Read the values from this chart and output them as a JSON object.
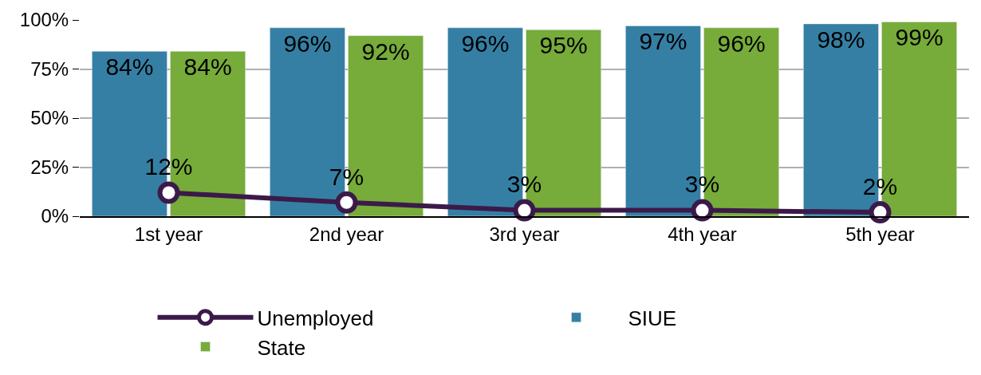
{
  "chart_data": {
    "type": "bar",
    "categories": [
      "1st year",
      "2nd year",
      "3rd year",
      "4th year",
      "5th year"
    ],
    "series": [
      {
        "name": "Unemployed",
        "type": "line",
        "color": "#3b1a4a",
        "marker": "circle",
        "values": [
          12,
          7,
          3,
          3,
          2
        ],
        "value_labels": [
          "12%",
          "7%",
          "3%",
          "3%",
          "2%"
        ]
      },
      {
        "name": "SIUE",
        "color": "#367fa4",
        "values": [
          84,
          96,
          96,
          97,
          98
        ],
        "value_labels": [
          "84%",
          "96%",
          "96%",
          "97%",
          "98%"
        ]
      },
      {
        "name": "State",
        "color": "#77ab3a",
        "values": [
          84,
          92,
          95,
          96,
          99
        ],
        "value_labels": [
          "84%",
          "92%",
          "95%",
          "96%",
          "99%"
        ]
      }
    ],
    "ylim": [
      0,
      100
    ],
    "yticks": [
      {
        "value": 0,
        "label": "0%"
      },
      {
        "value": 25,
        "label": "25%"
      },
      {
        "value": 50,
        "label": "50%"
      },
      {
        "value": 75,
        "label": "75%"
      },
      {
        "value": 100,
        "label": "100%"
      }
    ],
    "grid": "y",
    "legend": "bottom"
  }
}
